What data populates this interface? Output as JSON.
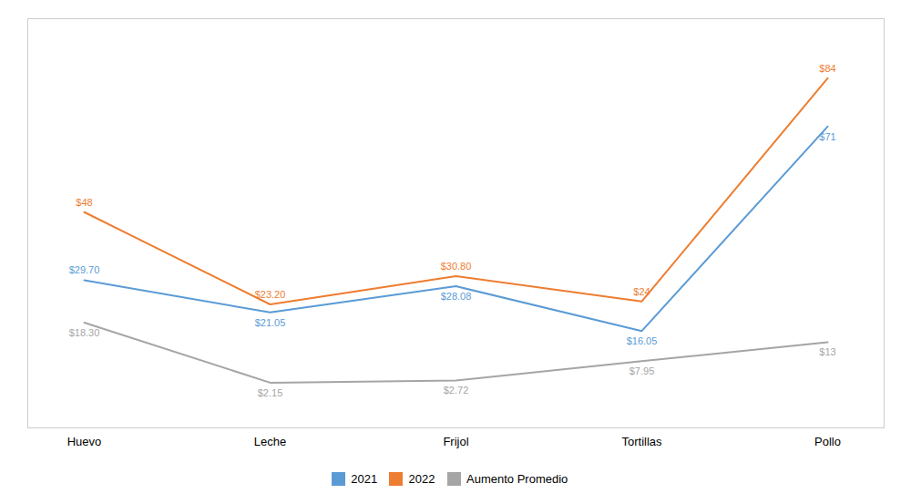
{
  "chart_data": {
    "type": "line",
    "categories": [
      "Huevo",
      "Leche",
      "Frijol",
      "Tortillas",
      "Pollo"
    ],
    "series": [
      {
        "name": "2021",
        "color": "#5B9BD5",
        "values": [
          29.7,
          21.05,
          28.08,
          16.05,
          71
        ],
        "value_labels": [
          "$29.70",
          "$21.05",
          "$28.08",
          "$16.05",
          "$71"
        ]
      },
      {
        "name": "2022",
        "color": "#ED7D31",
        "values": [
          48,
          23.2,
          30.8,
          24,
          84
        ],
        "value_labels": [
          "$48",
          "$23.20",
          "$30.80",
          "$24",
          "$84"
        ]
      },
      {
        "name": "Aumento Promedio",
        "color": "#A5A5A5",
        "values": [
          18.3,
          2.15,
          2.72,
          7.95,
          13
        ],
        "value_labels": [
          "$18.30",
          "$2.15",
          "$2.72",
          "$7.95",
          "$13"
        ]
      }
    ],
    "ylim": [
      -10,
      100
    ],
    "tick_labels": "x",
    "grid": false,
    "data_labels": true,
    "legend": "bottom"
  }
}
